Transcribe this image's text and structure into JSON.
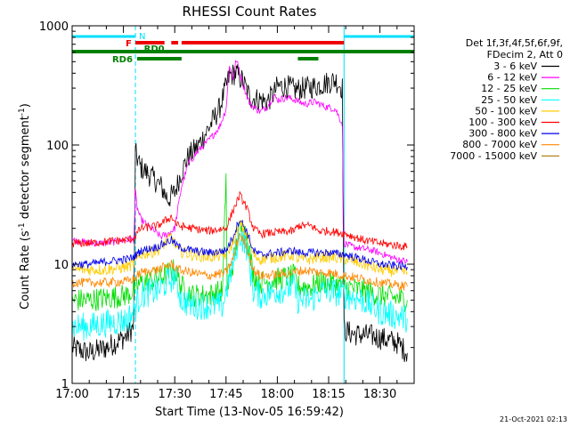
{
  "chart_data": {
    "type": "line",
    "title": "RHESSI Count Rates",
    "xlabel": "Start Time (13-Nov-05 16:59:42)",
    "ylabel": "Count Rate (s",
    "ylabel_sup1": "-1",
    "ylabel_mid": " detector segment",
    "ylabel_sup2": "-1",
    "ylabel_end": ")",
    "x_scale": "time",
    "xlim": [
      "17:00",
      "18:40"
    ],
    "x_ticks": [
      "17:00",
      "17:15",
      "17:30",
      "17:45",
      "18:00",
      "18:15",
      "18:30"
    ],
    "y_scale": "log",
    "ylim": [
      1,
      1000
    ],
    "y_ticks": [
      "1",
      "10",
      "100",
      "1000"
    ],
    "legend_header": [
      "Det 1f,3f,4f,5f,6f,9f,",
      "FDecim 2, Att 0"
    ],
    "legend_position": "right",
    "footer": "21-Oct-2021 02:13",
    "night_markers": {
      "label": "N",
      "color": "#00e0ff",
      "intervals": [
        [
          "17:00",
          "17:18.5"
        ],
        [
          "18:19.5",
          "18:40"
        ]
      ]
    },
    "flag_bars": [
      {
        "label": "F",
        "color": "#ee0000",
        "segments": [
          [
            "17:18.5",
            "17:27"
          ],
          [
            "17:29",
            "17:31"
          ],
          [
            "17:32",
            "18:19.5"
          ]
        ]
      },
      {
        "label": "RD0",
        "color": "#008000",
        "segments": [
          [
            "17:00",
            "18:40"
          ]
        ]
      },
      {
        "label": "RD6",
        "color": "#008000",
        "segments": [
          [
            "17:19",
            "17:32"
          ],
          [
            "18:06",
            "18:12"
          ]
        ]
      }
    ],
    "series": [
      {
        "name": "3 - 6 keV",
        "color": "#000000",
        "noise": 0.1,
        "gaps": true,
        "points": [
          [
            "17:00",
            2.0
          ],
          [
            "17:05",
            1.8
          ],
          [
            "17:10",
            2.0
          ],
          [
            "17:16",
            2.5
          ],
          [
            "17:18",
            3.0
          ],
          [
            "17:18.5",
            85
          ],
          [
            "17:20",
            65
          ],
          [
            "17:23",
            55
          ],
          [
            "17:26",
            45
          ],
          [
            "17:28",
            35
          ],
          [
            "17:30",
            40
          ],
          [
            "17:32",
            60
          ],
          [
            "17:34",
            80
          ],
          [
            "17:37",
            100
          ],
          [
            "17:40",
            140
          ],
          [
            "17:43",
            200
          ],
          [
            "17:46",
            380
          ],
          [
            "17:48",
            400
          ],
          [
            "17:50",
            340
          ],
          [
            "17:52",
            250
          ],
          [
            "17:55",
            240
          ],
          [
            "17:57",
            230
          ],
          [
            "17:59",
            270
          ],
          [
            "18:00",
            310
          ],
          [
            "18:03",
            310
          ],
          [
            "18:05",
            290
          ],
          [
            "18:08",
            300
          ],
          [
            "18:11",
            310
          ],
          [
            "18:14",
            330
          ],
          [
            "18:17",
            350
          ],
          [
            "18:19",
            300
          ],
          [
            "18:19.5",
            2.8
          ],
          [
            "18:22",
            2.6
          ],
          [
            "18:28",
            2.5
          ],
          [
            "18:35",
            2.2
          ],
          [
            "18:38",
            1.8
          ]
        ]
      },
      {
        "name": "6 - 12 keV",
        "color": "#ff00ff",
        "noise": 0.03,
        "points": [
          [
            "17:00",
            16
          ],
          [
            "17:05",
            15
          ],
          [
            "17:10",
            15
          ],
          [
            "17:16",
            16
          ],
          [
            "17:18",
            16
          ],
          [
            "17:18.5",
            40
          ],
          [
            "17:19",
            30
          ],
          [
            "17:20",
            24
          ],
          [
            "17:23",
            20
          ],
          [
            "17:26",
            17
          ],
          [
            "17:28",
            18
          ],
          [
            "17:30",
            20
          ],
          [
            "17:32",
            45
          ],
          [
            "17:34",
            70
          ],
          [
            "17:37",
            90
          ],
          [
            "17:40",
            110
          ],
          [
            "17:43",
            140
          ],
          [
            "17:45",
            200
          ],
          [
            "17:46",
            480
          ],
          [
            "17:47",
            360
          ],
          [
            "17:48",
            520
          ],
          [
            "17:50",
            320
          ],
          [
            "17:52",
            220
          ],
          [
            "17:55",
            190
          ],
          [
            "17:57",
            210
          ],
          [
            "17:59",
            260
          ],
          [
            "18:00",
            240
          ],
          [
            "18:03",
            250
          ],
          [
            "18:05",
            240
          ],
          [
            "18:08",
            220
          ],
          [
            "18:11",
            230
          ],
          [
            "18:14",
            210
          ],
          [
            "18:17",
            200
          ],
          [
            "18:19",
            150
          ],
          [
            "18:19.5",
            15
          ],
          [
            "18:22",
            14
          ],
          [
            "18:28",
            13
          ],
          [
            "18:35",
            11
          ],
          [
            "18:38",
            10.5
          ]
        ]
      },
      {
        "name": "12 - 25 keV",
        "color": "#00dd00",
        "noise": 0.1,
        "points": [
          [
            "17:00",
            5.0
          ],
          [
            "17:05",
            5.0
          ],
          [
            "17:10",
            5.2
          ],
          [
            "17:16",
            5.5
          ],
          [
            "17:18",
            6
          ],
          [
            "17:20",
            7
          ],
          [
            "17:25",
            7.5
          ],
          [
            "17:30",
            9
          ],
          [
            "17:32",
            6.5
          ],
          [
            "17:35",
            5.5
          ],
          [
            "17:40",
            5.5
          ],
          [
            "17:44",
            6
          ],
          [
            "17:45",
            60
          ],
          [
            "17:45.3",
            6
          ],
          [
            "17:47",
            10
          ],
          [
            "17:49",
            20
          ],
          [
            "17:51",
            18
          ],
          [
            "17:53",
            8
          ],
          [
            "17:55",
            7
          ],
          [
            "18:00",
            7.5
          ],
          [
            "18:05",
            8
          ],
          [
            "18:06",
            6.5
          ],
          [
            "18:10",
            6.5
          ],
          [
            "18:12",
            7
          ],
          [
            "18:15",
            7
          ],
          [
            "18:20",
            6.5
          ],
          [
            "18:25",
            6
          ],
          [
            "18:30",
            5.5
          ],
          [
            "18:38",
            5.0
          ]
        ]
      },
      {
        "name": "25 - 50 keV",
        "color": "#00ffff",
        "noise": 0.12,
        "points": [
          [
            "17:00",
            3.0
          ],
          [
            "17:05",
            3.0
          ],
          [
            "17:10",
            3.2
          ],
          [
            "17:16",
            3.4
          ],
          [
            "17:18",
            4
          ],
          [
            "17:20",
            5.5
          ],
          [
            "17:25",
            6
          ],
          [
            "17:30",
            8
          ],
          [
            "17:32",
            5
          ],
          [
            "17:35",
            4.5
          ],
          [
            "17:40",
            4.5
          ],
          [
            "17:44",
            4.5
          ],
          [
            "17:47",
            10
          ],
          [
            "17:49",
            18
          ],
          [
            "17:51",
            14
          ],
          [
            "17:53",
            6
          ],
          [
            "17:55",
            5.5
          ],
          [
            "18:00",
            6
          ],
          [
            "18:05",
            6.5
          ],
          [
            "18:06",
            5
          ],
          [
            "18:10",
            5
          ],
          [
            "18:12",
            5.8
          ],
          [
            "18:15",
            6
          ],
          [
            "18:20",
            5.5
          ],
          [
            "18:25",
            5
          ],
          [
            "18:30",
            4
          ],
          [
            "18:38",
            3.5
          ]
        ]
      },
      {
        "name": "50 - 100 keV",
        "color": "#ffcc00",
        "noise": 0.05,
        "points": [
          [
            "17:00",
            9
          ],
          [
            "17:05",
            9
          ],
          [
            "17:10",
            9
          ],
          [
            "17:16",
            9.5
          ],
          [
            "17:18",
            10
          ],
          [
            "17:20",
            12
          ],
          [
            "17:25",
            13
          ],
          [
            "17:29",
            17
          ],
          [
            "17:31",
            13
          ],
          [
            "17:35",
            12
          ],
          [
            "17:40",
            11.5
          ],
          [
            "17:45",
            12
          ],
          [
            "17:47",
            15
          ],
          [
            "17:49",
            22
          ],
          [
            "17:51",
            18
          ],
          [
            "17:53",
            12
          ],
          [
            "17:55",
            11
          ],
          [
            "18:00",
            11.5
          ],
          [
            "18:05",
            12
          ],
          [
            "18:06",
            11
          ],
          [
            "18:10",
            11
          ],
          [
            "18:12",
            11.5
          ],
          [
            "18:15",
            11.5
          ],
          [
            "18:20",
            11
          ],
          [
            "18:25",
            10
          ],
          [
            "18:30",
            9
          ],
          [
            "18:38",
            8.5
          ]
        ]
      },
      {
        "name": "100 - 300 keV",
        "color": "#ff0000",
        "noise": 0.035,
        "points": [
          [
            "17:00",
            15
          ],
          [
            "17:05",
            15
          ],
          [
            "17:10",
            15.5
          ],
          [
            "17:16",
            16
          ],
          [
            "17:18",
            16.5
          ],
          [
            "17:20",
            20
          ],
          [
            "17:25",
            21
          ],
          [
            "17:29",
            25
          ],
          [
            "17:31",
            21
          ],
          [
            "17:35",
            20
          ],
          [
            "17:40",
            19
          ],
          [
            "17:45",
            20
          ],
          [
            "17:47",
            28
          ],
          [
            "17:49",
            38
          ],
          [
            "17:51",
            30
          ],
          [
            "17:53",
            20
          ],
          [
            "17:55",
            18
          ],
          [
            "18:00",
            18.5
          ],
          [
            "18:05",
            19
          ],
          [
            "18:06",
            21
          ],
          [
            "18:10",
            21
          ],
          [
            "18:12",
            19
          ],
          [
            "18:15",
            19
          ],
          [
            "18:20",
            18
          ],
          [
            "18:25",
            16
          ],
          [
            "18:30",
            15
          ],
          [
            "18:38",
            14
          ]
        ]
      },
      {
        "name": "300 - 800 keV",
        "color": "#0000ee",
        "noise": 0.035,
        "points": [
          [
            "17:00",
            10
          ],
          [
            "17:05",
            10
          ],
          [
            "17:10",
            10.5
          ],
          [
            "17:16",
            11
          ],
          [
            "17:18",
            11.5
          ],
          [
            "17:20",
            13
          ],
          [
            "17:25",
            14
          ],
          [
            "17:29",
            16
          ],
          [
            "17:31",
            14
          ],
          [
            "17:35",
            13
          ],
          [
            "17:40",
            12.5
          ],
          [
            "17:45",
            13
          ],
          [
            "17:47",
            17
          ],
          [
            "17:49",
            24
          ],
          [
            "17:51",
            19
          ],
          [
            "17:53",
            13
          ],
          [
            "17:55",
            12
          ],
          [
            "18:00",
            12.5
          ],
          [
            "18:05",
            13
          ],
          [
            "18:06",
            12.5
          ],
          [
            "18:10",
            12.5
          ],
          [
            "18:12",
            12.5
          ],
          [
            "18:15",
            12.5
          ],
          [
            "18:20",
            12
          ],
          [
            "18:25",
            11
          ],
          [
            "18:30",
            10
          ],
          [
            "18:38",
            9.5
          ]
        ]
      },
      {
        "name": "800 - 7000 keV",
        "color": "#ff8800",
        "noise": 0.04,
        "points": [
          [
            "17:00",
            7
          ],
          [
            "17:05",
            7
          ],
          [
            "17:10",
            7
          ],
          [
            "17:16",
            7.2
          ],
          [
            "17:18",
            7.5
          ],
          [
            "17:20",
            8.5
          ],
          [
            "17:25",
            9
          ],
          [
            "17:29",
            10
          ],
          [
            "17:31",
            9
          ],
          [
            "17:35",
            8.5
          ],
          [
            "17:40",
            8
          ],
          [
            "17:45",
            8.5
          ],
          [
            "17:47",
            11
          ],
          [
            "17:49",
            18
          ],
          [
            "17:51",
            14
          ],
          [
            "17:53",
            9
          ],
          [
            "17:55",
            8
          ],
          [
            "18:00",
            8.2
          ],
          [
            "18:05",
            8.5
          ],
          [
            "18:06",
            8.8
          ],
          [
            "18:10",
            8.8
          ],
          [
            "18:12",
            8.5
          ],
          [
            "18:15",
            8.5
          ],
          [
            "18:20",
            8
          ],
          [
            "18:25",
            7.5
          ],
          [
            "18:30",
            7
          ],
          [
            "18:38",
            6.5
          ]
        ]
      },
      {
        "name": "7000 - 15000 keV",
        "color": "#aa7700",
        "noise": 0.01,
        "points": []
      }
    ]
  }
}
